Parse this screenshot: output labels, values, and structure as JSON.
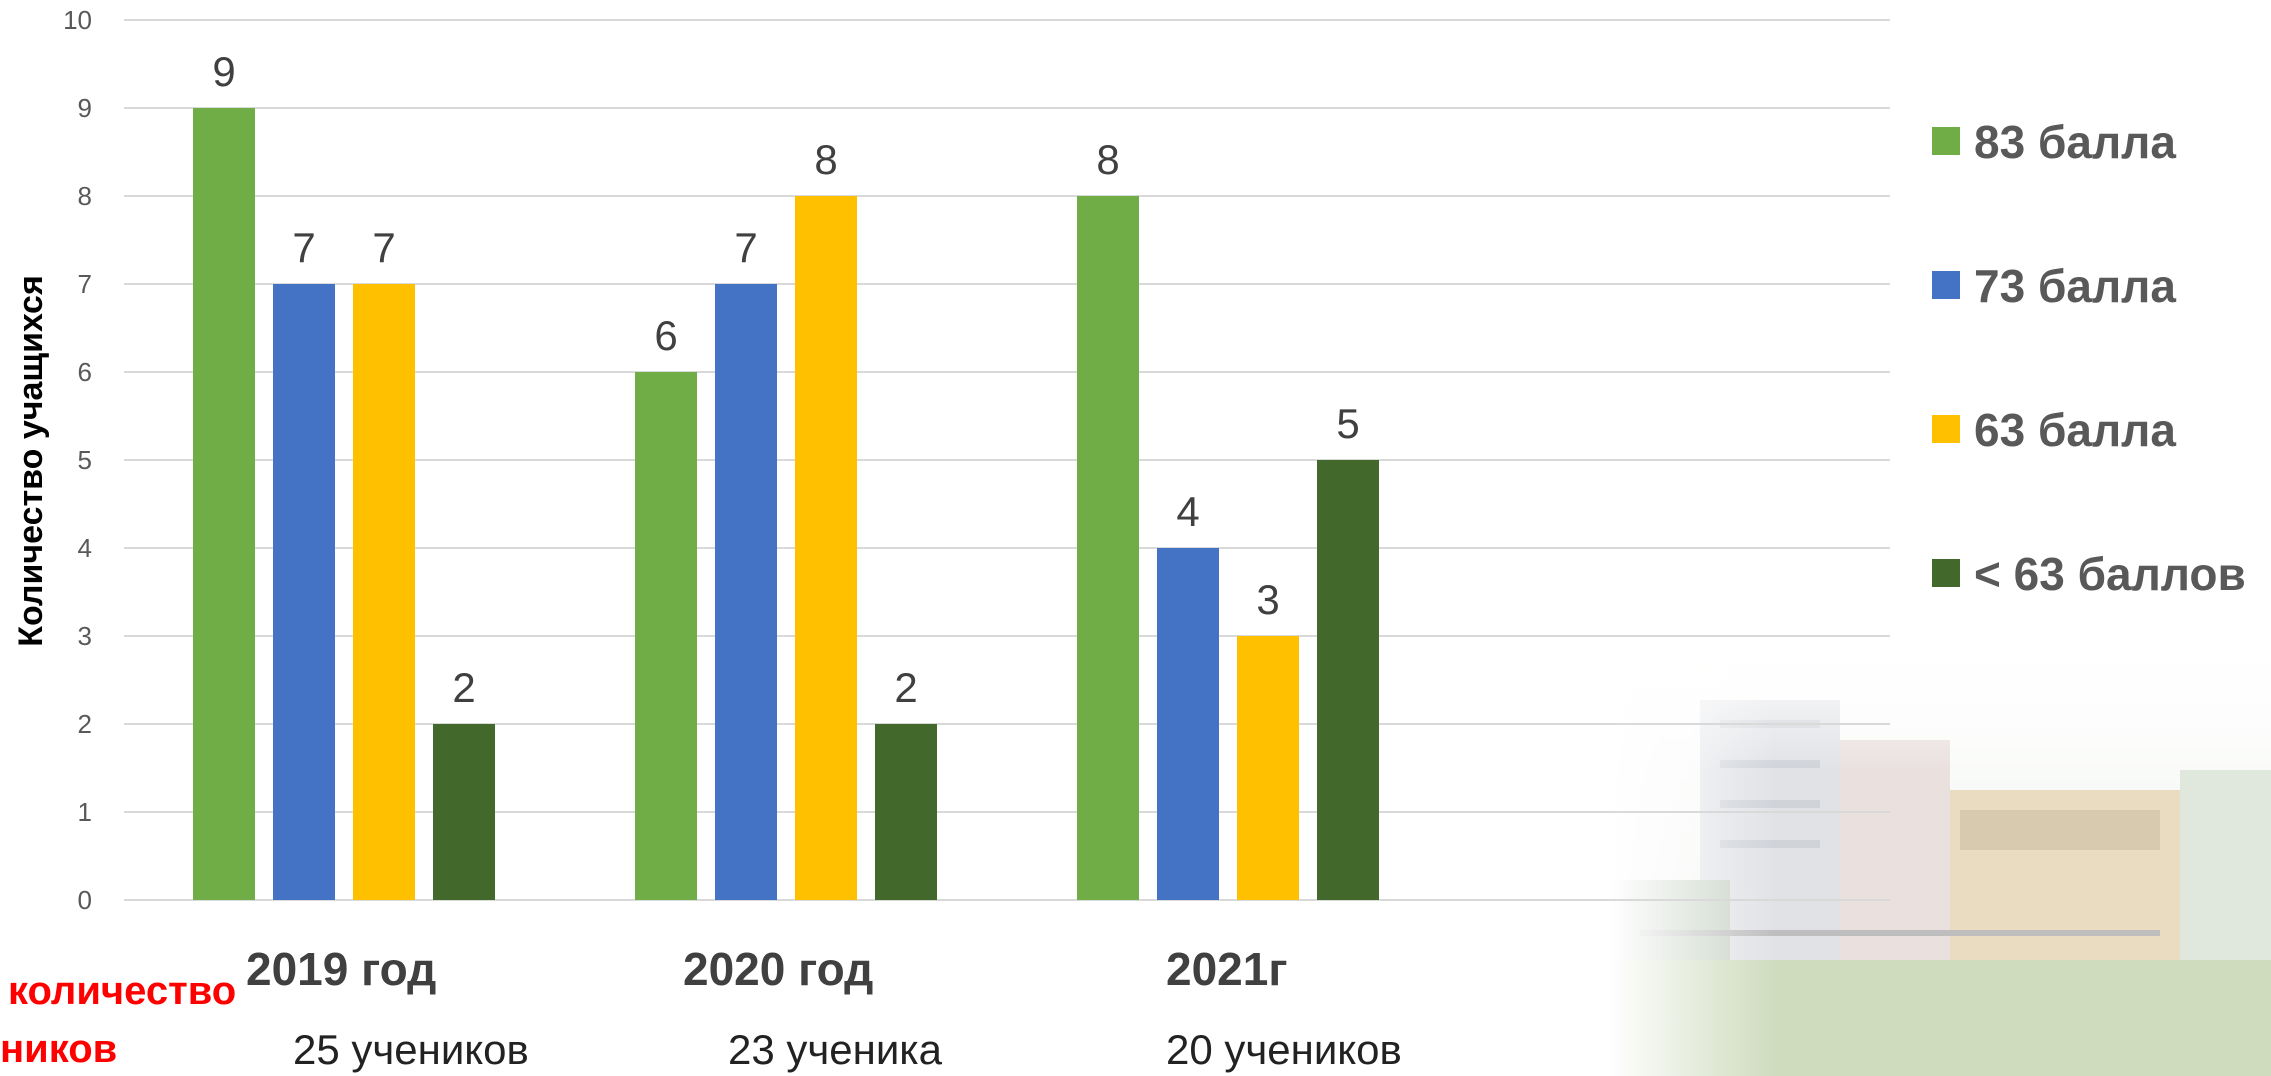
{
  "chart_data": {
    "type": "bar",
    "title": "",
    "ylabel": "Количество учащихся",
    "xlabel": "",
    "ylim": [
      0,
      10
    ],
    "yticks": [
      0,
      1,
      2,
      3,
      4,
      5,
      6,
      7,
      8,
      9,
      10
    ],
    "grid": true,
    "legend_position": "right",
    "categories": [
      "2019 год",
      "2020 год",
      "2021г"
    ],
    "category_counts": [
      "25 учеников",
      "23 ученика",
      "20 учеников"
    ],
    "series": [
      {
        "name": "83 балла",
        "color": "#70ad47",
        "values": [
          9,
          6,
          8
        ]
      },
      {
        "name": "73 балла",
        "color": "#4472c4",
        "values": [
          7,
          7,
          4
        ]
      },
      {
        "name": "63 балла",
        "color": "#ffc000",
        "values": [
          7,
          8,
          3
        ]
      },
      {
        "name": "< 63 баллов",
        "color": "#43682b",
        "values": [
          2,
          2,
          5
        ]
      }
    ]
  },
  "footer": {
    "line1": "количество",
    "line2": "ников"
  }
}
